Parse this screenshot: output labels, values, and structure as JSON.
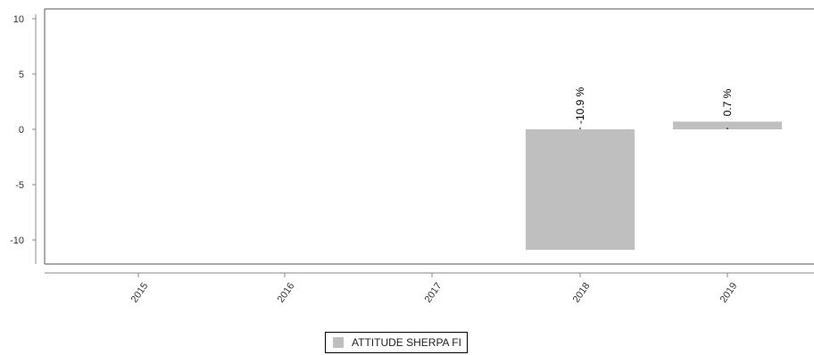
{
  "chart_data": {
    "type": "bar",
    "categories": [
      "2015",
      "2016",
      "2017",
      "2018",
      "2019"
    ],
    "series": [
      {
        "name": "ATTITUDE SHERPA FI",
        "values": [
          null,
          null,
          null,
          -10.9,
          0.7
        ],
        "labels": [
          "",
          "",
          "",
          "-10.9 %",
          "0.7 %"
        ],
        "color": "#bfbfbf"
      }
    ],
    "yticks": [
      "10",
      "5",
      "0",
      "-5",
      "-10"
    ],
    "ylim": [
      -12,
      10.5
    ],
    "grid": false,
    "legend": "bottom"
  }
}
